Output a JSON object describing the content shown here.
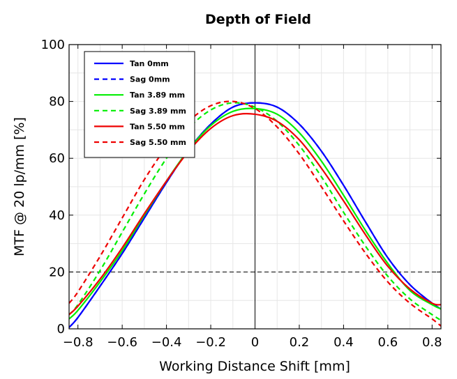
{
  "chart_data": {
    "type": "line",
    "title": "Depth of Field",
    "xlabel": "Working Distance Shift [mm]",
    "ylabel": "MTF @ 20 lp/mm [%]",
    "xlim": [
      -0.84,
      0.84
    ],
    "ylim": [
      0,
      100
    ],
    "xticks": [
      -0.8,
      -0.6,
      -0.4,
      -0.2,
      0,
      0.2,
      0.4,
      0.6,
      0.8
    ],
    "xtick_labels": [
      "−0.8",
      "−0.6",
      "−0.4",
      "−0.2",
      "0",
      "0.2",
      "0.4",
      "0.6",
      "0.8"
    ],
    "yticks": [
      0,
      20,
      40,
      60,
      80,
      100
    ],
    "ytick_labels": [
      "0",
      "20",
      "40",
      "60",
      "80",
      "100"
    ],
    "grid": true,
    "legend_position": "top-left",
    "reference_lines": [
      {
        "orientation": "horizontal",
        "value": 20,
        "style": "dashed"
      },
      {
        "orientation": "vertical",
        "value": 0,
        "style": "solid"
      }
    ],
    "x": [
      -0.84,
      -0.8,
      -0.7,
      -0.6,
      -0.5,
      -0.4,
      -0.3,
      -0.2,
      -0.1,
      0,
      0.1,
      0.2,
      0.3,
      0.4,
      0.5,
      0.6,
      0.7,
      0.8,
      0.84
    ],
    "series": [
      {
        "name": "Tan 0mm",
        "color": "#0000ff",
        "dash": false,
        "values": [
          0.5,
          4,
          15,
          26.5,
          39,
          51.5,
          63,
          72,
          78,
          79.5,
          78,
          72,
          62.5,
          50.5,
          37.5,
          25,
          15.5,
          9,
          7
        ]
      },
      {
        "name": "Sag 0mm",
        "color": "#0000ff",
        "dash": true,
        "values": [
          0.5,
          4,
          15,
          26.5,
          39,
          51.5,
          63,
          72,
          78,
          79.5,
          78,
          72,
          62.5,
          50.5,
          37.5,
          25,
          15.5,
          9,
          7
        ]
      },
      {
        "name": "Tan 3.89 mm",
        "color": "#00ee00",
        "dash": false,
        "values": [
          3.5,
          6.5,
          16.5,
          27.5,
          40,
          52,
          63,
          71.5,
          76.5,
          77.5,
          75.5,
          69,
          59,
          47,
          34.5,
          23,
          13.5,
          8.5,
          7
        ]
      },
      {
        "name": "Sag 3.89 mm",
        "color": "#00ee00",
        "dash": true,
        "values": [
          5,
          8.5,
          20.5,
          34,
          47.5,
          60,
          70.5,
          77,
          79.5,
          78,
          73,
          64.5,
          53.5,
          41,
          29,
          18.5,
          10.5,
          5,
          3
        ]
      },
      {
        "name": "Tan 5.50 mm",
        "color": "#ee0000",
        "dash": false,
        "values": [
          5,
          8,
          17.5,
          28.5,
          40.5,
          52,
          62.5,
          70.5,
          75,
          75.5,
          73,
          66.5,
          56.5,
          45,
          33,
          22,
          14,
          9,
          8.5
        ]
      },
      {
        "name": "Sag 5.50 mm",
        "color": "#ee0000",
        "dash": true,
        "values": [
          9,
          13,
          25.5,
          39,
          52.5,
          64,
          73,
          78.5,
          80,
          77.5,
          71,
          61.5,
          50,
          38,
          26.5,
          16.5,
          9,
          3.5,
          1
        ]
      }
    ]
  }
}
